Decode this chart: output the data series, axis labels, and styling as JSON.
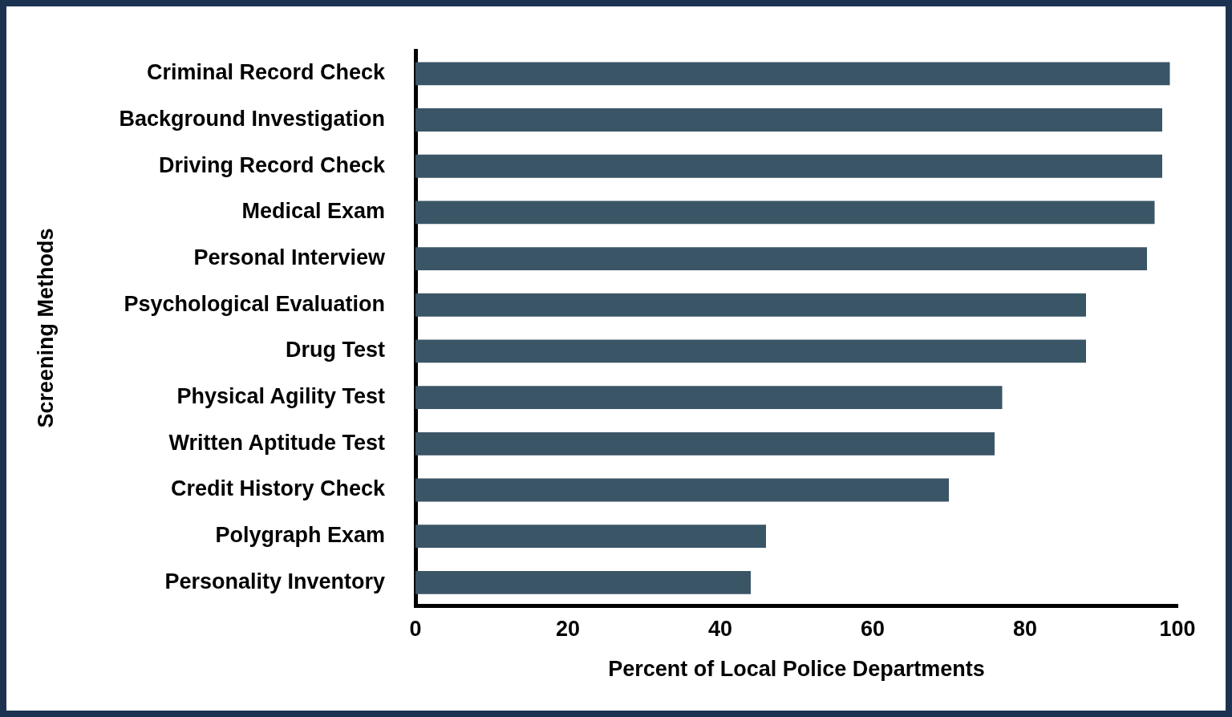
{
  "chart_data": {
    "type": "bar",
    "orientation": "horizontal",
    "xlabel": "Percent of Local Police Departments",
    "ylabel": "Screening Methods",
    "categories": [
      "Criminal Record Check",
      "Background Investigation",
      "Driving Record Check",
      "Medical Exam",
      "Personal Interview",
      "Psychological Evaluation",
      "Drug Test",
      "Physical Agility Test",
      "Written Aptitude Test",
      "Credit History Check",
      "Polygraph Exam",
      "Personality Inventory"
    ],
    "values": [
      99,
      98,
      98,
      97,
      96,
      88,
      88,
      77,
      76,
      70,
      46,
      44
    ],
    "color": "#3a5566",
    "xlim": [
      0,
      100
    ],
    "xticks": [
      0,
      20,
      40,
      60,
      80,
      100
    ],
    "grid": false,
    "legend": false
  }
}
